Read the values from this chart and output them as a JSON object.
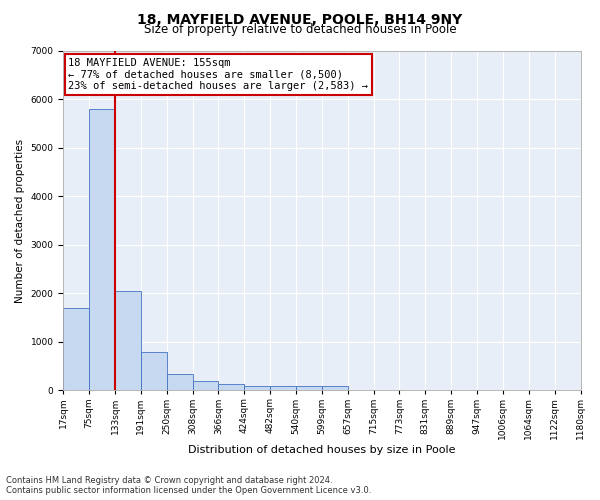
{
  "title1": "18, MAYFIELD AVENUE, POOLE, BH14 9NY",
  "title2": "Size of property relative to detached houses in Poole",
  "xlabel": "Distribution of detached houses by size in Poole",
  "ylabel": "Number of detached properties",
  "bar_values": [
    1700,
    5800,
    2050,
    800,
    330,
    200,
    130,
    100,
    80,
    80,
    80,
    0,
    0,
    0,
    0,
    0,
    0,
    0,
    0,
    0
  ],
  "bar_labels": [
    "17sqm",
    "75sqm",
    "133sqm",
    "191sqm",
    "250sqm",
    "308sqm",
    "366sqm",
    "424sqm",
    "482sqm",
    "540sqm",
    "599sqm",
    "657sqm",
    "715sqm",
    "773sqm",
    "831sqm",
    "889sqm",
    "947sqm",
    "1006sqm",
    "1064sqm",
    "1122sqm",
    "1180sqm"
  ],
  "bar_color": "#c6d9f0",
  "bar_edge_color": "#4472c4",
  "vline_color": "#cc0000",
  "annotation_text": "18 MAYFIELD AVENUE: 155sqm\n← 77% of detached houses are smaller (8,500)\n23% of semi-detached houses are larger (2,583) →",
  "annotation_box_color": "#ffffff",
  "annotation_box_edge_color": "#cc0000",
  "ylim": [
    0,
    7000
  ],
  "yticks": [
    0,
    1000,
    2000,
    3000,
    4000,
    5000,
    6000,
    7000
  ],
  "footer_line1": "Contains HM Land Registry data © Crown copyright and database right 2024.",
  "footer_line2": "Contains public sector information licensed under the Open Government Licence v3.0.",
  "background_color": "#ffffff",
  "plot_bg_color": "#e8eef7",
  "grid_color": "#ffffff",
  "title1_fontsize": 10,
  "title2_fontsize": 8.5,
  "xlabel_fontsize": 8,
  "ylabel_fontsize": 7.5,
  "tick_fontsize": 6.5,
  "annotation_fontsize": 7.5,
  "footer_fontsize": 6
}
